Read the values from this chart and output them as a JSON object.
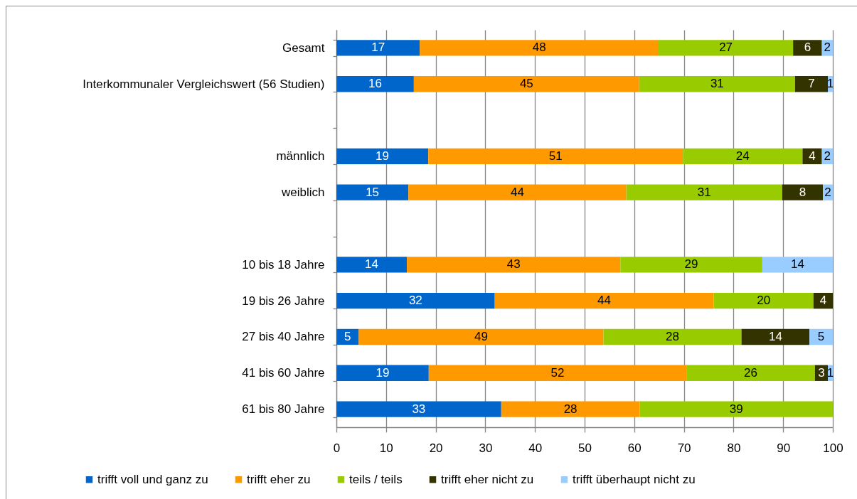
{
  "chart_data": {
    "type": "bar",
    "orientation": "horizontal",
    "stacked": true,
    "categories": [
      "Gesamt",
      "Interkommunaler Vergleichswert (56 Studien)",
      null,
      "männlich",
      "weiblich",
      null,
      "10 bis 18 Jahre",
      "19 bis 26 Jahre",
      "27 bis 40 Jahre",
      "41 bis 60 Jahre",
      "61 bis 80 Jahre"
    ],
    "series": [
      {
        "name": "trifft voll und ganz zu",
        "color": "#0066cc",
        "values": [
          16.8,
          15.6,
          null,
          18.5,
          14.5,
          null,
          14.2,
          31.9,
          4.5,
          18.6,
          33.2
        ],
        "value_labels": [
          "17",
          "16",
          null,
          "19",
          "15",
          null,
          "14",
          "32",
          "5",
          "19",
          "33"
        ]
      },
      {
        "name": "trifft eher zu",
        "color": "#ff9900",
        "values": [
          48.1,
          45.4,
          null,
          51.3,
          43.9,
          null,
          43.0,
          44.1,
          49.3,
          51.9,
          27.9
        ],
        "value_labels": [
          "48",
          "45",
          null,
          "51",
          "44",
          null,
          "43",
          "44",
          "49",
          "52",
          "28"
        ]
      },
      {
        "name": "teils / teils",
        "color": "#99cc00",
        "values": [
          27.1,
          31.4,
          null,
          24.1,
          31.4,
          null,
          28.6,
          20.1,
          27.8,
          25.9,
          38.9
        ],
        "value_labels": [
          "27",
          "31",
          null,
          "24",
          "31",
          null,
          "29",
          "20",
          "28",
          "26",
          "39"
        ]
      },
      {
        "name": "trifft eher nicht zu",
        "color": "#333300",
        "values": [
          5.8,
          6.6,
          null,
          3.9,
          8.2,
          null,
          null,
          3.9,
          13.7,
          2.6,
          null
        ],
        "value_labels": [
          "6",
          "7",
          null,
          "4",
          "8",
          null,
          null,
          "4",
          "14",
          "3",
          null
        ]
      },
      {
        "name": "trifft überhaupt nicht zu",
        "color": "#99ccff",
        "values": [
          2.2,
          1.0,
          null,
          2.2,
          2.0,
          null,
          14.2,
          null,
          4.7,
          1.0,
          null
        ],
        "value_labels": [
          "2",
          "1",
          null,
          "2",
          "2",
          null,
          "14",
          null,
          "5",
          "1",
          null
        ]
      }
    ],
    "xlim": [
      0,
      100
    ],
    "xticks": [
      0,
      10,
      20,
      30,
      40,
      50,
      60,
      70,
      80,
      90,
      100
    ],
    "grid": "x",
    "legend": "bottom"
  }
}
